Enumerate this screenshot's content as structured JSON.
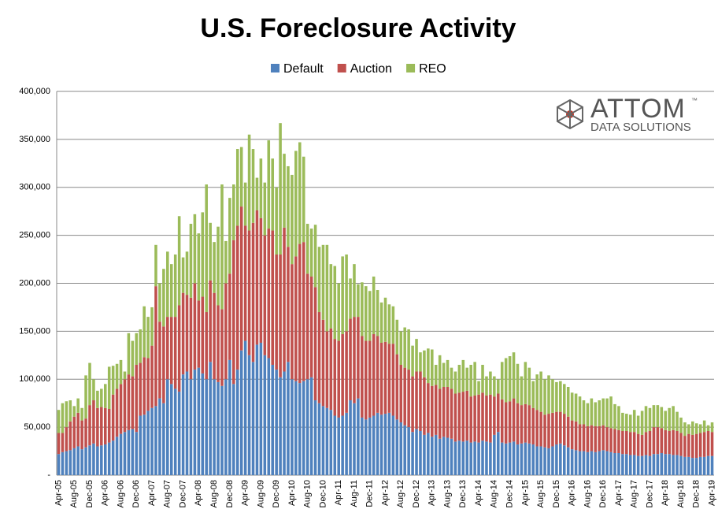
{
  "chart_data": {
    "type": "stacked_bar",
    "title": "U.S. Foreclosure Activity",
    "logo_text": "ATTOM",
    "logo_mark": "™",
    "logo_subtext": "DATA SOLUTIONS",
    "categories": [
      "Apr-05",
      null,
      null,
      null,
      "Aug-05",
      null,
      null,
      null,
      "Dec-05",
      null,
      null,
      null,
      "Apr-06",
      null,
      null,
      null,
      "Aug-06",
      null,
      null,
      null,
      "Dec-06",
      null,
      null,
      null,
      "Apr-07",
      null,
      null,
      null,
      "Aug-07",
      null,
      null,
      null,
      "Dec-07",
      null,
      null,
      null,
      "Apr-08",
      null,
      null,
      null,
      "Aug-08",
      null,
      null,
      null,
      "Dec-08",
      null,
      null,
      null,
      "Apr-09",
      null,
      null,
      null,
      "Aug-09",
      null,
      null,
      null,
      "Dec-09",
      null,
      null,
      null,
      "Apr-10",
      null,
      null,
      null,
      "Aug-10",
      null,
      null,
      null,
      "Dec-10",
      null,
      null,
      null,
      "Apr-11",
      null,
      null,
      null,
      "Aug-11",
      null,
      null,
      null,
      "Dec-11",
      null,
      null,
      null,
      "Apr-12",
      null,
      null,
      null,
      "Aug-12",
      null,
      null,
      null,
      "Dec-12",
      null,
      null,
      null,
      "Apr-13",
      null,
      null,
      null,
      "Aug-13",
      null,
      null,
      null,
      "Dec-13",
      null,
      null,
      null,
      "Apr-14",
      null,
      null,
      null,
      "Aug-14",
      null,
      null,
      null,
      "Dec-14",
      null,
      null,
      null,
      "Apr-15",
      null,
      null,
      null,
      "Aug-15",
      null,
      null,
      null,
      "Dec-15",
      null,
      null,
      null,
      "Apr-16",
      null,
      null,
      null,
      "Aug-16",
      null,
      null,
      null,
      "Dec-16",
      null,
      null,
      null,
      "Apr-17",
      null,
      null,
      null,
      "Aug-17",
      null,
      null,
      null,
      "Dec-17",
      null,
      null,
      null,
      "Apr-18",
      null,
      null,
      null,
      "Aug-18",
      null,
      null,
      null,
      "Dec-18",
      null,
      null,
      null,
      "Apr-19"
    ],
    "series": [
      {
        "name": "Default",
        "color": "#4f81bd",
        "values": [
          22000,
          24000,
          25000,
          26000,
          28000,
          30000,
          27000,
          29000,
          31000,
          33000,
          30000,
          31000,
          32000,
          34000,
          36000,
          40000,
          43000,
          45000,
          47000,
          48000,
          45000,
          62000,
          63000,
          67000,
          70000,
          72000,
          80000,
          75000,
          100000,
          95000,
          90000,
          87000,
          105000,
          108000,
          100000,
          110000,
          112000,
          106000,
          100000,
          118000,
          100000,
          97000,
          93000,
          100000,
          120000,
          95000,
          110000,
          130000,
          140000,
          125000,
          118000,
          136000,
          138000,
          125000,
          122000,
          115000,
          110000,
          102000,
          108000,
          118000,
          100000,
          98000,
          96000,
          98000,
          100000,
          102000,
          78000,
          75000,
          72000,
          70000,
          68000,
          62000,
          60000,
          62000,
          65000,
          78000,
          75000,
          80000,
          60000,
          58000,
          60000,
          62000,
          65000,
          63000,
          64000,
          65000,
          62000,
          58000,
          55000,
          52000,
          50000,
          45000,
          48000,
          46000,
          42000,
          44000,
          40000,
          42000,
          38000,
          40000,
          39000,
          38000,
          35000,
          36000,
          35000,
          36000,
          34000,
          35000,
          34000,
          36000,
          35000,
          34000,
          42000,
          45000,
          34000,
          33000,
          34000,
          35000,
          32000,
          33000,
          34000,
          33000,
          32000,
          30000,
          30000,
          29000,
          28000,
          30000,
          32000,
          33000,
          31000,
          29000,
          27000,
          26000,
          25000,
          25000,
          24000,
          25000,
          24000,
          25000,
          26000,
          25000,
          24000,
          23000,
          23000,
          22000,
          22000,
          21000,
          21000,
          20000,
          20000,
          21000,
          20000,
          22000,
          22000,
          23000,
          22000,
          22000,
          21000,
          21000,
          20000,
          19000,
          19000,
          18000,
          18000,
          19000,
          19000,
          20000,
          20000
        ]
      },
      {
        "name": "Auction",
        "color": "#c0504d",
        "values": [
          22000,
          20000,
          25000,
          30000,
          33000,
          35000,
          30000,
          30000,
          42000,
          45000,
          40000,
          40000,
          38000,
          35000,
          48000,
          50000,
          52000,
          55000,
          58000,
          55000,
          70000,
          55000,
          60000,
          55000,
          65000,
          125000,
          80000,
          80000,
          65000,
          70000,
          75000,
          90000,
          85000,
          80000,
          85000,
          90000,
          70000,
          80000,
          70000,
          85000,
          90000,
          80000,
          80000,
          100000,
          90000,
          150000,
          150000,
          150000,
          120000,
          130000,
          145000,
          140000,
          130000,
          125000,
          135000,
          140000,
          120000,
          128000,
          150000,
          120000,
          120000,
          130000,
          145000,
          145000,
          110000,
          105000,
          118000,
          95000,
          90000,
          80000,
          85000,
          80000,
          80000,
          85000,
          85000,
          85000,
          90000,
          85000,
          85000,
          82000,
          80000,
          85000,
          80000,
          75000,
          75000,
          72000,
          75000,
          68000,
          60000,
          60000,
          60000,
          58000,
          60000,
          62000,
          60000,
          52000,
          53000,
          52000,
          52000,
          52000,
          53000,
          52000,
          50000,
          50000,
          52000,
          52000,
          48000,
          48000,
          50000,
          50000,
          48000,
          50000,
          40000,
          40000,
          45000,
          43000,
          43000,
          45000,
          43000,
          40000,
          40000,
          40000,
          38000,
          38000,
          36000,
          34000,
          36000,
          35000,
          34000,
          33000,
          33000,
          32000,
          30000,
          30000,
          28000,
          28000,
          27000,
          27000,
          27000,
          26000,
          26000,
          25000,
          25000,
          25000,
          24000,
          24000,
          24000,
          24000,
          24000,
          23000,
          22000,
          24000,
          26000,
          28000,
          28000,
          26000,
          25000,
          24000,
          26000,
          25000,
          24000,
          22000,
          24000,
          24000,
          25000,
          25000,
          26000,
          26000,
          25000
        ]
      },
      {
        "name": "REO",
        "color": "#9bbb59",
        "values": [
          24000,
          31000,
          27000,
          22000,
          11000,
          15000,
          13000,
          45000,
          44000,
          22000,
          18000,
          19000,
          25000,
          44000,
          30000,
          26000,
          25000,
          8000,
          43000,
          37000,
          33000,
          35000,
          53000,
          43000,
          40000,
          43000,
          40000,
          60000,
          68000,
          55000,
          65000,
          93000,
          37000,
          45000,
          77000,
          72000,
          70000,
          88000,
          133000,
          60000,
          53000,
          82000,
          130000,
          44000,
          79000,
          58000,
          80000,
          62000,
          45000,
          100000,
          77000,
          34000,
          62000,
          55000,
          92000,
          75000,
          70000,
          137000,
          77000,
          84000,
          93000,
          110000,
          106000,
          89000,
          52000,
          50000,
          65000,
          68000,
          78000,
          90000,
          67000,
          76000,
          60000,
          81000,
          80000,
          42000,
          55000,
          34000,
          56000,
          57000,
          52000,
          60000,
          48000,
          42000,
          46000,
          41000,
          39000,
          36000,
          35000,
          42000,
          42000,
          32000,
          34000,
          20000,
          28000,
          36000,
          38000,
          21000,
          35000,
          25000,
          28000,
          22000,
          23000,
          29000,
          33000,
          24000,
          33000,
          35000,
          14000,
          29000,
          20000,
          24000,
          21000,
          15000,
          39000,
          46000,
          47000,
          48000,
          41000,
          30000,
          44000,
          39000,
          28000,
          37000,
          42000,
          37000,
          40000,
          35000,
          31000,
          32000,
          31000,
          31000,
          29000,
          29000,
          29000,
          25000,
          24000,
          28000,
          25000,
          27000,
          28000,
          30000,
          33000,
          26000,
          25000,
          19000,
          18000,
          18000,
          23000,
          19000,
          25000,
          27000,
          24000,
          23000,
          23000,
          22000,
          20000,
          24000,
          25000,
          20000,
          16000,
          14000,
          10000,
          14000,
          11000,
          9000,
          12000,
          6000,
          10000
        ]
      }
    ],
    "ylim": [
      0,
      400000
    ],
    "yticks": [
      {
        "value": 0,
        "label": "-"
      },
      {
        "value": 50000,
        "label": "50,000"
      },
      {
        "value": 100000,
        "label": "100,000"
      },
      {
        "value": 150000,
        "label": "150,000"
      },
      {
        "value": 200000,
        "label": "200,000"
      },
      {
        "value": 250000,
        "label": "250,000"
      },
      {
        "value": 300000,
        "label": "300,000"
      },
      {
        "value": 350000,
        "label": "350,000"
      },
      {
        "value": 400000,
        "label": "400,000"
      }
    ],
    "grid": true,
    "legend": "top"
  }
}
